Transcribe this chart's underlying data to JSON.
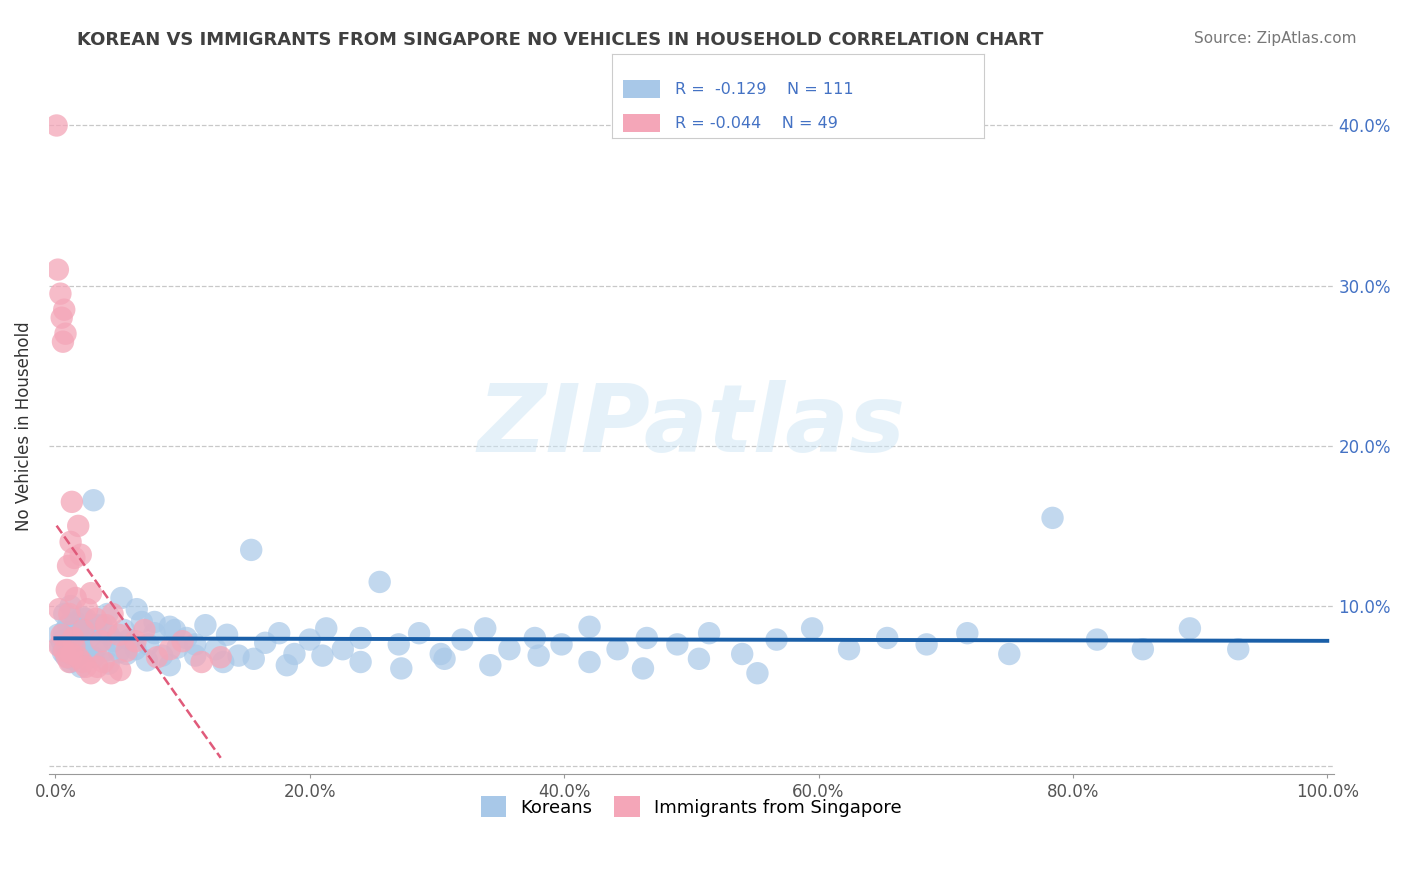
{
  "title": "KOREAN VS IMMIGRANTS FROM SINGAPORE NO VEHICLES IN HOUSEHOLD CORRELATION CHART",
  "source": "Source: ZipAtlas.com",
  "ylabel": "No Vehicles in Household",
  "watermark": "ZIPatlas",
  "xlim": [
    -0.005,
    1.005
  ],
  "ylim": [
    -0.005,
    0.43
  ],
  "xtick_vals": [
    0.0,
    0.2,
    0.4,
    0.6,
    0.8,
    1.0
  ],
  "xticklabels": [
    "0.0%",
    "20.0%",
    "40.0%",
    "60.0%",
    "80.0%",
    "100.0%"
  ],
  "ytick_vals": [
    0.0,
    0.1,
    0.2,
    0.3,
    0.4
  ],
  "right_yticklabels": [
    "",
    "10.0%",
    "20.0%",
    "30.0%",
    "40.0%"
  ],
  "blue_color": "#a8c8e8",
  "pink_color": "#f4a6b8",
  "line_blue": "#1a5fa8",
  "line_pink": "#e05a7a",
  "grid_color": "#c8c8c8",
  "background": "#ffffff",
  "title_color": "#404040",
  "legend_blue_r": "R =  -0.129",
  "legend_blue_n": "N = 111",
  "legend_pink_r": "R = -0.044",
  "legend_pink_n": "N = 49",
  "koreans_x": [
    0.002,
    0.004,
    0.005,
    0.006,
    0.007,
    0.008,
    0.009,
    0.01,
    0.011,
    0.012,
    0.013,
    0.014,
    0.015,
    0.016,
    0.017,
    0.018,
    0.019,
    0.02,
    0.021,
    0.022,
    0.024,
    0.026,
    0.028,
    0.03,
    0.033,
    0.036,
    0.039,
    0.042,
    0.046,
    0.05,
    0.054,
    0.058,
    0.063,
    0.068,
    0.073,
    0.078,
    0.084,
    0.09,
    0.096,
    0.103,
    0.11,
    0.118,
    0.126,
    0.135,
    0.144,
    0.154,
    0.165,
    0.176,
    0.188,
    0.2,
    0.213,
    0.226,
    0.24,
    0.255,
    0.27,
    0.286,
    0.303,
    0.32,
    0.338,
    0.357,
    0.377,
    0.398,
    0.42,
    0.442,
    0.465,
    0.489,
    0.514,
    0.54,
    0.567,
    0.595,
    0.624,
    0.654,
    0.685,
    0.717,
    0.75,
    0.784,
    0.819,
    0.855,
    0.892,
    0.93,
    0.007,
    0.012,
    0.018,
    0.024,
    0.032,
    0.041,
    0.052,
    0.064,
    0.078,
    0.094,
    0.012,
    0.02,
    0.03,
    0.042,
    0.056,
    0.072,
    0.09,
    0.11,
    0.132,
    0.156,
    0.182,
    0.21,
    0.24,
    0.272,
    0.306,
    0.342,
    0.38,
    0.42,
    0.462,
    0.506,
    0.552
  ],
  "koreans_y": [
    0.082,
    0.075,
    0.078,
    0.071,
    0.084,
    0.069,
    0.076,
    0.088,
    0.073,
    0.08,
    0.067,
    0.083,
    0.077,
    0.09,
    0.074,
    0.086,
    0.07,
    0.079,
    0.093,
    0.072,
    0.085,
    0.068,
    0.081,
    0.166,
    0.075,
    0.088,
    0.072,
    0.082,
    0.078,
    0.071,
    0.085,
    0.079,
    0.073,
    0.09,
    0.076,
    0.083,
    0.069,
    0.087,
    0.074,
    0.08,
    0.076,
    0.088,
    0.073,
    0.082,
    0.069,
    0.135,
    0.077,
    0.083,
    0.07,
    0.079,
    0.086,
    0.073,
    0.08,
    0.115,
    0.076,
    0.083,
    0.07,
    0.079,
    0.086,
    0.073,
    0.08,
    0.076,
    0.087,
    0.073,
    0.08,
    0.076,
    0.083,
    0.07,
    0.079,
    0.086,
    0.073,
    0.08,
    0.076,
    0.083,
    0.07,
    0.155,
    0.079,
    0.073,
    0.086,
    0.073,
    0.095,
    0.1,
    0.085,
    0.092,
    0.088,
    0.095,
    0.105,
    0.098,
    0.09,
    0.085,
    0.065,
    0.062,
    0.068,
    0.064,
    0.07,
    0.066,
    0.063,
    0.069,
    0.065,
    0.067,
    0.063,
    0.069,
    0.065,
    0.061,
    0.067,
    0.063,
    0.069,
    0.065,
    0.061,
    0.067,
    0.058
  ],
  "singapore_x": [
    0.001,
    0.002,
    0.003,
    0.004,
    0.005,
    0.006,
    0.007,
    0.008,
    0.009,
    0.01,
    0.011,
    0.012,
    0.013,
    0.014,
    0.015,
    0.016,
    0.018,
    0.02,
    0.022,
    0.025,
    0.028,
    0.032,
    0.036,
    0.04,
    0.045,
    0.05,
    0.056,
    0.063,
    0.07,
    0.08,
    0.09,
    0.1,
    0.115,
    0.13,
    0.003,
    0.005,
    0.007,
    0.009,
    0.011,
    0.013,
    0.015,
    0.018,
    0.021,
    0.024,
    0.028,
    0.033,
    0.038,
    0.044,
    0.051
  ],
  "singapore_y": [
    0.4,
    0.31,
    0.098,
    0.295,
    0.28,
    0.265,
    0.285,
    0.27,
    0.11,
    0.125,
    0.095,
    0.14,
    0.165,
    0.08,
    0.13,
    0.105,
    0.15,
    0.132,
    0.085,
    0.098,
    0.108,
    0.092,
    0.078,
    0.088,
    0.095,
    0.082,
    0.072,
    0.078,
    0.085,
    0.068,
    0.073,
    0.078,
    0.065,
    0.068,
    0.075,
    0.082,
    0.072,
    0.068,
    0.065,
    0.07,
    0.075,
    0.068,
    0.065,
    0.062,
    0.058,
    0.062,
    0.065,
    0.058,
    0.06
  ]
}
